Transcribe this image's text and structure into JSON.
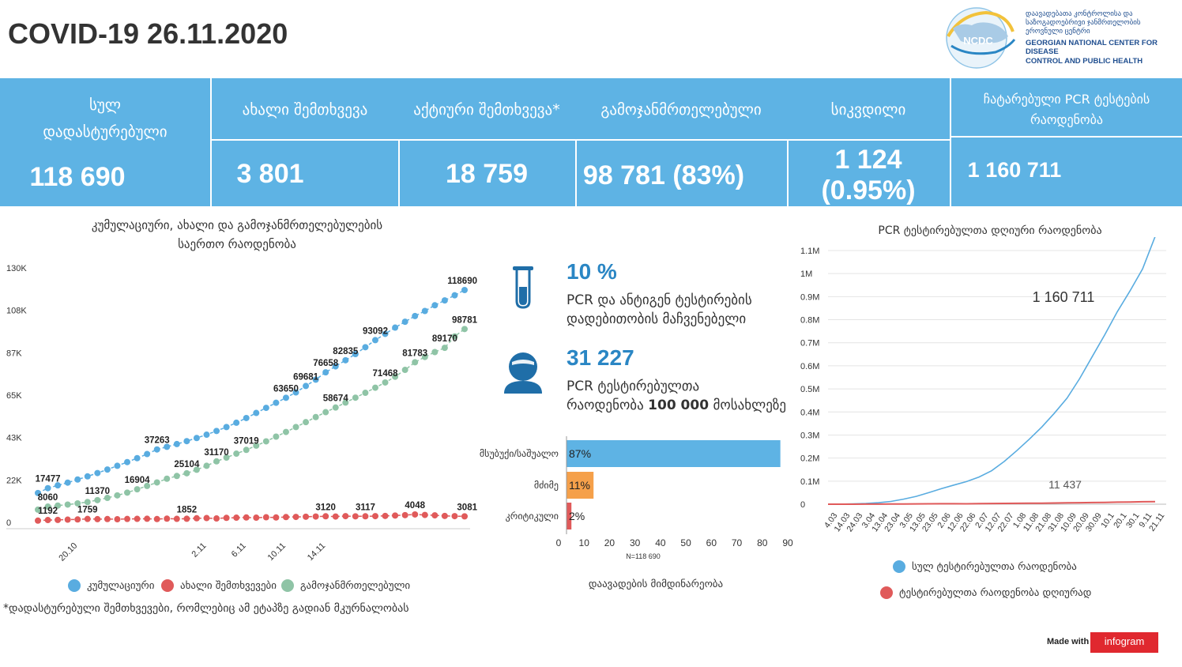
{
  "header": {
    "title": "COVID-19 26.11.2020"
  },
  "logo": {
    "short": "NCDC",
    "name_ka_1": "დაავადებათა კონტროლისა და",
    "name_ka_2": "საზოგადოებრივი ჯანმრთელობის",
    "name_ka_3": "ეროვნული ცენტრი",
    "name_en_1": "GEORGIAN NATIONAL CENTER FOR DISEASE",
    "name_en_2": "CONTROL AND PUBLIC HEALTH"
  },
  "banner": {
    "total_label_1": "სულ",
    "total_label_2": "დადასტურებული",
    "total_value": "118 690",
    "new_label": "ახალი შემთხვევა",
    "new_value": "3 801",
    "active_label": "აქტიური შემთხვევა*",
    "active_value": "18 759",
    "recovered_label": "გამოჯანმრთელებული",
    "recovered_value": "98 781 (83%)",
    "deaths_label": "სიკვდილი",
    "deaths_value": "1 124 (0.95%)",
    "pcr_label_1": "ჩატარებული PCR  ტესტების",
    "pcr_label_2": "რაოდენობა",
    "pcr_value": "1 160 711"
  },
  "left_chart_title_1": "კუმულაციური, ახალი და გამოჯანმრთელებულების",
  "left_chart_title_2": "საერთო რაოდენობა",
  "footnote": "*დადასტურებული შემთხვევები, რომლებიც ამ ეტაპზე გადიან მკურნალობას",
  "middle": {
    "positivity_value": "10 %",
    "positivity_desc_1": "PCR და ანტიგენ ტესტირების",
    "positivity_desc_2": "დადებითობის მაჩვენებელი",
    "per100k_value": "31 227",
    "per100k_desc_1": "PCR  ტესტირებულთა",
    "per100k_desc_2_a": "რაოდენობა ",
    "per100k_desc_2_b": "100 000",
    "per100k_desc_2_c": " მოსახლეზე",
    "severity_title": "დაავადების მიმდინარეობა",
    "severity_n": "N=118 690"
  },
  "right_chart_title": "PCR  ტესტირებულთა დღიური რაოდენობა",
  "made_with": "Made with",
  "infogram": "infogram",
  "colors": {
    "banner": "#5eb3e4",
    "cumulative": "#59ace0",
    "new": "#e05a5a",
    "recovered": "#8fc4a6",
    "severity_mild": "#5eb3e4",
    "severity_severe": "#f5a04a",
    "severity_critical": "#e05a5a",
    "accent": "#2a86c4"
  },
  "chart_data": [
    {
      "type": "line",
      "ylim": [
        0,
        130000
      ],
      "y_ticks": [
        "0",
        "22K",
        "43K",
        "65K",
        "87K",
        "108K",
        "130K"
      ],
      "x_ticks": [
        {
          "label": "20.10",
          "index": 4
        },
        {
          "label": "2.11",
          "index": 17
        },
        {
          "label": "6.11",
          "index": 21
        },
        {
          "label": "10.11",
          "index": 25
        },
        {
          "label": "14.11",
          "index": 29
        }
      ],
      "count": 44,
      "series": [
        {
          "name": "კუმულაციური",
          "color": "#59ace0",
          "values": [
            15000,
            17477,
            18900,
            20300,
            21900,
            23500,
            25200,
            27000,
            28900,
            30800,
            32800,
            34900,
            37263,
            38600,
            40000,
            41500,
            43100,
            44800,
            46700,
            48700,
            50900,
            53300,
            55900,
            58500,
            61100,
            63650,
            66400,
            69681,
            72900,
            76658,
            79700,
            82835,
            86000,
            89500,
            93092,
            96300,
            99500,
            102500,
            105400,
            108000,
            110900,
            113400,
            116000,
            118690
          ],
          "labels": [
            [
              1,
              "17477"
            ],
            [
              12,
              "37263"
            ],
            [
              25,
              "63650"
            ],
            [
              27,
              "69681"
            ],
            [
              29,
              "76658"
            ],
            [
              31,
              "82835"
            ],
            [
              34,
              "93092"
            ],
            [
              43,
              "118690"
            ]
          ]
        },
        {
          "name": "გამოჯანმრთელებული",
          "color": "#8fc4a6",
          "values": [
            6500,
            8060,
            8600,
            9100,
            9700,
            10400,
            11370,
            12500,
            13800,
            15200,
            16904,
            18600,
            20400,
            22300,
            23700,
            25104,
            26900,
            28900,
            31170,
            33100,
            35100,
            37019,
            39200,
            41400,
            43800,
            46200,
            48700,
            51200,
            53800,
            56300,
            58674,
            61200,
            63700,
            66200,
            68800,
            71468,
            74400,
            77900,
            81783,
            84500,
            87000,
            89170,
            95000,
            98781
          ],
          "labels": [
            [
              1,
              "8060"
            ],
            [
              6,
              "11370"
            ],
            [
              10,
              "16904"
            ],
            [
              15,
              "25104"
            ],
            [
              18,
              "31170"
            ],
            [
              21,
              "37019"
            ],
            [
              30,
              "58674"
            ],
            [
              35,
              "71468"
            ],
            [
              38,
              "81783"
            ],
            [
              41,
              "89170"
            ],
            [
              43,
              "98781"
            ]
          ]
        },
        {
          "name": "ახალი შემთხვევები",
          "color": "#e05a5a",
          "values": [
            900,
            1192,
            1250,
            1400,
            1500,
            1759,
            1650,
            1700,
            1600,
            1750,
            1800,
            1852,
            1700,
            1900,
            1800,
            1852,
            2100,
            2200,
            2000,
            2300,
            2400,
            2500,
            2400,
            2600,
            2500,
            2700,
            2800,
            2900,
            3000,
            3120,
            3000,
            3200,
            3100,
            3117,
            3200,
            3300,
            3500,
            3700,
            4048,
            3800,
            3600,
            3300,
            3200,
            3081
          ],
          "labels": [
            [
              1,
              "1192"
            ],
            [
              5,
              "1759"
            ],
            [
              15,
              "1852"
            ],
            [
              29,
              "3120"
            ],
            [
              33,
              "3117"
            ],
            [
              38,
              "4048"
            ],
            [
              43,
              "3081"
            ]
          ]
        }
      ]
    },
    {
      "type": "bar",
      "orientation": "horizontal",
      "categories": [
        "მსუბუქი/საშუალო",
        "მძიმე",
        "კრიტიკული"
      ],
      "values": [
        87,
        11,
        2
      ],
      "value_labels": [
        "87%",
        "11%",
        "2%"
      ],
      "xlim": [
        0,
        90
      ],
      "x_ticks": [
        "0",
        "10",
        "20",
        "30",
        "40",
        "50",
        "60",
        "70",
        "80",
        "90"
      ]
    },
    {
      "type": "line",
      "title": "PCR  ტესტირებულთა დღიური რაოდენობა",
      "ylim": [
        0,
        1100000
      ],
      "y_ticks": [
        "0",
        "0.1M",
        "0.2M",
        "0.3M",
        "0.4M",
        "0.5M",
        "0.6M",
        "0.7M",
        "0.8M",
        "0.9M",
        "1M",
        "1.1M"
      ],
      "x_ticks": [
        "4.03",
        "14.03",
        "24.03",
        "3.04",
        "13.04",
        "23.04",
        "3.05",
        "13.05",
        "23.05",
        "2.06",
        "12.06",
        "22.06",
        "2.07",
        "12.07",
        "22.07",
        "1.08",
        "11.08",
        "21.08",
        "31.08",
        "10.09",
        "20.09",
        "30.09",
        "10.1",
        "20.1",
        "30.1",
        "9.11",
        "21.11"
      ],
      "series": [
        {
          "name": "სულ ტესტირებულთა რაოდენობა",
          "color": "#59ace0",
          "values": [
            0,
            300,
            1200,
            3000,
            6500,
            12000,
            22000,
            34000,
            50000,
            67000,
            83000,
            98000,
            118000,
            145000,
            185000,
            232000,
            282000,
            335000,
            395000,
            460000,
            545000,
            640000,
            735000,
            835000,
            925000,
            1020000,
            1160711
          ],
          "end_label": "1 160 711"
        },
        {
          "name": "ტესტირებულთა რაოდენობა დღიურად",
          "color": "#e05a5a",
          "values": [
            0,
            50,
            150,
            300,
            500,
            700,
            1000,
            1400,
            1800,
            2200,
            2000,
            1800,
            2500,
            3000,
            3500,
            3800,
            4200,
            4500,
            5000,
            5800,
            6500,
            7200,
            8000,
            8800,
            9500,
            10500,
            11437
          ],
          "end_label": "11 437"
        }
      ]
    }
  ]
}
